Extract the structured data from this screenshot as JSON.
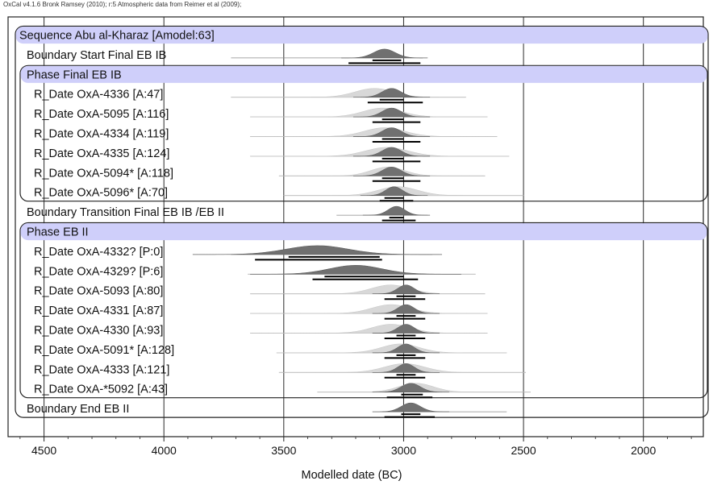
{
  "header": {
    "credit": "OxCal v4.1.6 Bronk Ramsey (2010); r:5 Atmospheric data from Reimer et al (2009);"
  },
  "chart_data": {
    "type": "oxcal-multiplot",
    "xlabel": "Modelled date (BC)",
    "xlim": [
      4650,
      1750
    ],
    "xticks": [
      4500,
      4000,
      3500,
      3000,
      2500,
      2000
    ],
    "xtick_labels": [
      "4500",
      "4000",
      "3500",
      "3000",
      "2500",
      "2000"
    ],
    "grid": true,
    "colors": {
      "frame": "#222222",
      "header_band": "#cfcffa",
      "prior": "#d8d8d8",
      "posterior": "#707070",
      "range": "#000000"
    },
    "rows": [
      {
        "label": "Sequence Abu al-Kharaz [Amodel:63]",
        "kind": "sequence"
      },
      {
        "label": "Boundary Start Final EB IB",
        "kind": "boundary",
        "center": 3080,
        "sd": 45,
        "range68": [
          3130,
          3010
        ],
        "range95": [
          3230,
          2930
        ],
        "tail": [
          3720,
          2920
        ]
      },
      {
        "label": "Phase Final EB IB",
        "kind": "phase"
      },
      {
        "label": "R_Date OxA-4336 [A:47]",
        "kind": "date",
        "center": 3050,
        "sd": 40,
        "prior": [
          3720,
          2740
        ],
        "range68": [
          3100,
          3000
        ],
        "range95": [
          3150,
          2920
        ]
      },
      {
        "label": "R_Date OxA-5095 [A:116]",
        "kind": "date",
        "center": 3050,
        "sd": 40,
        "prior": [
          3640,
          2650
        ],
        "range68": [
          3090,
          3000
        ],
        "range95": [
          3130,
          2930
        ]
      },
      {
        "label": "R_Date OxA-4334 [A:119]",
        "kind": "date",
        "center": 3050,
        "sd": 40,
        "prior": [
          3640,
          2610
        ],
        "range68": [
          3090,
          3000
        ],
        "range95": [
          3130,
          2930
        ]
      },
      {
        "label": "R_Date OxA-4335 [A:124]",
        "kind": "date",
        "center": 3050,
        "sd": 40,
        "prior": [
          3640,
          2560
        ],
        "range68": [
          3090,
          3000
        ],
        "range95": [
          3130,
          2930
        ]
      },
      {
        "label": "R_Date OxA-5094* [A:118]",
        "kind": "date",
        "center": 3050,
        "sd": 40,
        "prior": [
          3520,
          2660
        ],
        "range68": [
          3090,
          3000
        ],
        "range95": [
          3130,
          2930
        ]
      },
      {
        "label": "R_Date OxA-5096* [A:70]",
        "kind": "date",
        "center": 3040,
        "sd": 35,
        "prior": [
          3500,
          2500
        ],
        "range68": [
          3080,
          3000
        ],
        "range95": [
          3100,
          2960
        ]
      },
      {
        "label": "Boundary Transition Final EB IB /EB II",
        "kind": "boundary",
        "center": 3030,
        "sd": 35,
        "range68": [
          3060,
          3000
        ],
        "range95": [
          3090,
          2950
        ],
        "tail": [
          3280,
          2900
        ]
      },
      {
        "label": "Phase EB II",
        "kind": "phase"
      },
      {
        "label": "R_Date OxA-4332? [P:0]",
        "kind": "date",
        "center": 3360,
        "sd": 130,
        "prior": [
          3720,
          2880
        ],
        "range68": [
          3480,
          3100
        ],
        "range95": [
          3620,
          3090
        ]
      },
      {
        "label": "R_Date OxA-4329? [P:6]",
        "kind": "date",
        "center": 3200,
        "sd": 110,
        "prior": [
          3650,
          2700
        ],
        "range68": [
          3330,
          3000
        ],
        "range95": [
          3380,
          2940
        ]
      },
      {
        "label": "R_Date OxA-5093 [A:80]",
        "kind": "date",
        "center": 2990,
        "sd": 35,
        "prior": [
          3640,
          2660
        ],
        "range68": [
          3030,
          2950
        ],
        "range95": [
          3080,
          2910
        ]
      },
      {
        "label": "R_Date OxA-4331 [A:87]",
        "kind": "date",
        "center": 2990,
        "sd": 35,
        "prior": [
          3640,
          2650
        ],
        "range68": [
          3030,
          2950
        ],
        "range95": [
          3080,
          2910
        ]
      },
      {
        "label": "R_Date OxA-4330 [A:93]",
        "kind": "date",
        "center": 2990,
        "sd": 35,
        "prior": [
          3640,
          2650
        ],
        "range68": [
          3030,
          2950
        ],
        "range95": [
          3080,
          2910
        ]
      },
      {
        "label": "R_Date OxA-5091* [A:128]",
        "kind": "date",
        "center": 2990,
        "sd": 35,
        "prior": [
          3530,
          2570
        ],
        "range68": [
          3030,
          2950
        ],
        "range95": [
          3080,
          2910
        ]
      },
      {
        "label": "R_Date OxA-4333 [A:121]",
        "kind": "date",
        "center": 2990,
        "sd": 35,
        "prior": [
          3520,
          2490
        ],
        "range68": [
          3030,
          2950
        ],
        "range95": [
          3080,
          2910
        ]
      },
      {
        "label": "R_Date OxA-*5092 [A:43]",
        "kind": "date",
        "center": 2970,
        "sd": 40,
        "prior": [
          3360,
          2470
        ],
        "range68": [
          3010,
          2920
        ],
        "range95": [
          3070,
          2880
        ]
      },
      {
        "label": "Boundary End EB II",
        "kind": "boundary",
        "center": 2970,
        "sd": 40,
        "range68": [
          3010,
          2930
        ],
        "range95": [
          3080,
          2870
        ],
        "tail": [
          3090,
          2570
        ]
      }
    ]
  }
}
